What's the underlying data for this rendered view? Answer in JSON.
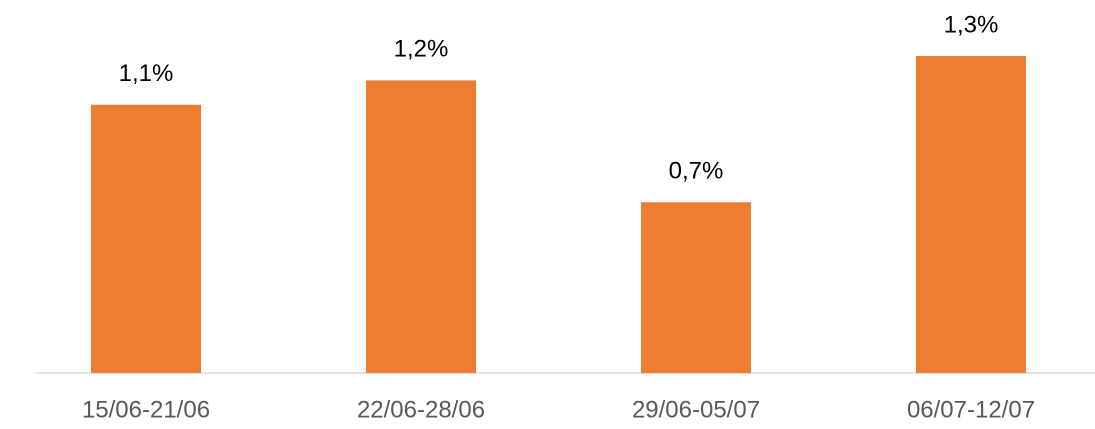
{
  "chart_data": {
    "type": "bar",
    "categories": [
      "15/06-21/06",
      "22/06-28/06",
      "29/06-05/07",
      "06/07-12/07"
    ],
    "values": [
      1.1,
      1.2,
      0.7,
      1.3
    ],
    "value_labels": [
      "1,1%",
      "1,2%",
      "0,7%",
      "1,3%"
    ],
    "color": "#ed7d31"
  }
}
